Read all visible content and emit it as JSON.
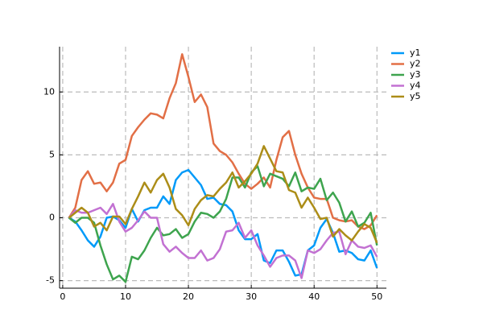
{
  "chart_data": {
    "type": "line",
    "x": [
      1,
      2,
      3,
      4,
      5,
      6,
      7,
      8,
      9,
      10,
      11,
      12,
      13,
      14,
      15,
      16,
      17,
      18,
      19,
      20,
      21,
      22,
      23,
      24,
      25,
      26,
      27,
      28,
      29,
      30,
      31,
      32,
      33,
      34,
      35,
      36,
      37,
      38,
      39,
      40,
      41,
      42,
      43,
      44,
      45,
      46,
      47,
      48,
      49,
      50
    ],
    "series": [
      {
        "name": "y1",
        "color": "#009af9",
        "values": [
          0,
          -0.3,
          -1,
          -1.8,
          -2.3,
          -1.5,
          0,
          0.1,
          -0.2,
          -0.8,
          0.7,
          -0.3,
          0.6,
          0.8,
          0.8,
          1.7,
          1.1,
          3,
          3.6,
          3.8,
          3.2,
          2.6,
          1.5,
          1.6,
          1.1,
          1,
          0.5,
          -1,
          -1.7,
          -1.7,
          -1.3,
          -3.4,
          -3.6,
          -2.6,
          -2.6,
          -3.5,
          -4.6,
          -4.5,
          -2.6,
          -2.2,
          -0.8,
          -0.1,
          -1.2,
          -2.7,
          -2.6,
          -2.8,
          -3.3,
          -3.4,
          -2.6,
          -4
        ]
      },
      {
        "name": "y2",
        "color": "#e26f46",
        "values": [
          0,
          0.8,
          3,
          3.7,
          2.7,
          2.8,
          2.1,
          2.8,
          4.3,
          4.6,
          6.5,
          7.2,
          7.8,
          8.3,
          8.2,
          7.9,
          9.5,
          10.7,
          13,
          11.2,
          9.2,
          9.8,
          8.8,
          5.9,
          5.3,
          5,
          4.4,
          3.5,
          2.7,
          2.3,
          2.7,
          3.2,
          2.4,
          4.6,
          6.4,
          6.9,
          5,
          3.5,
          2.4,
          1.6,
          1.5,
          1.5,
          0,
          -0.2,
          -0.3,
          -0.2,
          -0.7,
          -0.9,
          -0.6,
          0.2
        ]
      },
      {
        "name": "y3",
        "color": "#3ea44e",
        "values": [
          0,
          -0.4,
          0,
          0,
          -0.4,
          -2.2,
          -3.7,
          -4.9,
          -4.6,
          -5.1,
          -3.1,
          -3.3,
          -2.6,
          -1.6,
          -0.8,
          -1.4,
          -1.3,
          -0.9,
          -1.6,
          -1.3,
          -0.3,
          0.4,
          0.3,
          0,
          0.5,
          1.5,
          3.2,
          3.2,
          2.4,
          3.6,
          4.1,
          2.5,
          3.5,
          3.3,
          3.1,
          2.5,
          3.6,
          2.1,
          2.4,
          2.3,
          3.1,
          1.4,
          2,
          1.2,
          -0.3,
          0.5,
          -0.7,
          -0.4,
          0.4,
          -2.2
        ]
      },
      {
        "name": "y4",
        "color": "#c271d2",
        "values": [
          0,
          0.6,
          0.4,
          0.4,
          0.6,
          0.8,
          0.3,
          1.1,
          -0.3,
          -1.1,
          -0.8,
          -0.2,
          0.5,
          0,
          0,
          -2.1,
          -2.7,
          -2.3,
          -2.8,
          -3.2,
          -3.2,
          -2.6,
          -3.4,
          -3.2,
          -2.5,
          -1.1,
          -1,
          -0.4,
          -1.6,
          -1,
          -2.2,
          -3,
          -3.9,
          -3.2,
          -3,
          -3,
          -3.4,
          -4.8,
          -2.6,
          -2.8,
          -2.5,
          -1.8,
          -1.2,
          -1.1,
          -2.9,
          -1.8,
          -2.3,
          -2.4,
          -2.2,
          -3.1
        ]
      },
      {
        "name": "y5",
        "color": "#ac8d18",
        "values": [
          0,
          0.4,
          0.8,
          0.4,
          -0.7,
          -0.4,
          -1,
          0.1,
          0.1,
          -0.5,
          0.7,
          1.7,
          2.8,
          2,
          3,
          3.5,
          2.4,
          0.7,
          0.2,
          -0.6,
          0.7,
          1.4,
          1.8,
          1.7,
          2.3,
          2.8,
          3.6,
          2.4,
          2.9,
          3.5,
          4.3,
          5.7,
          4.7,
          3.7,
          3.6,
          2.2,
          2,
          0.8,
          1.6,
          0.8,
          -0.1,
          0,
          -1.5,
          -0.9,
          -1.4,
          -1.8,
          -1.1,
          -0.5,
          -0.8,
          -2
        ]
      }
    ],
    "xlim": [
      -0.5,
      51.5
    ],
    "ylim": [
      -5.6,
      13.6
    ],
    "xticks": [
      0,
      10,
      20,
      30,
      40,
      50
    ],
    "yticks": [
      -5,
      0,
      5,
      10
    ],
    "grid": true,
    "legend": "outer-top-right"
  }
}
